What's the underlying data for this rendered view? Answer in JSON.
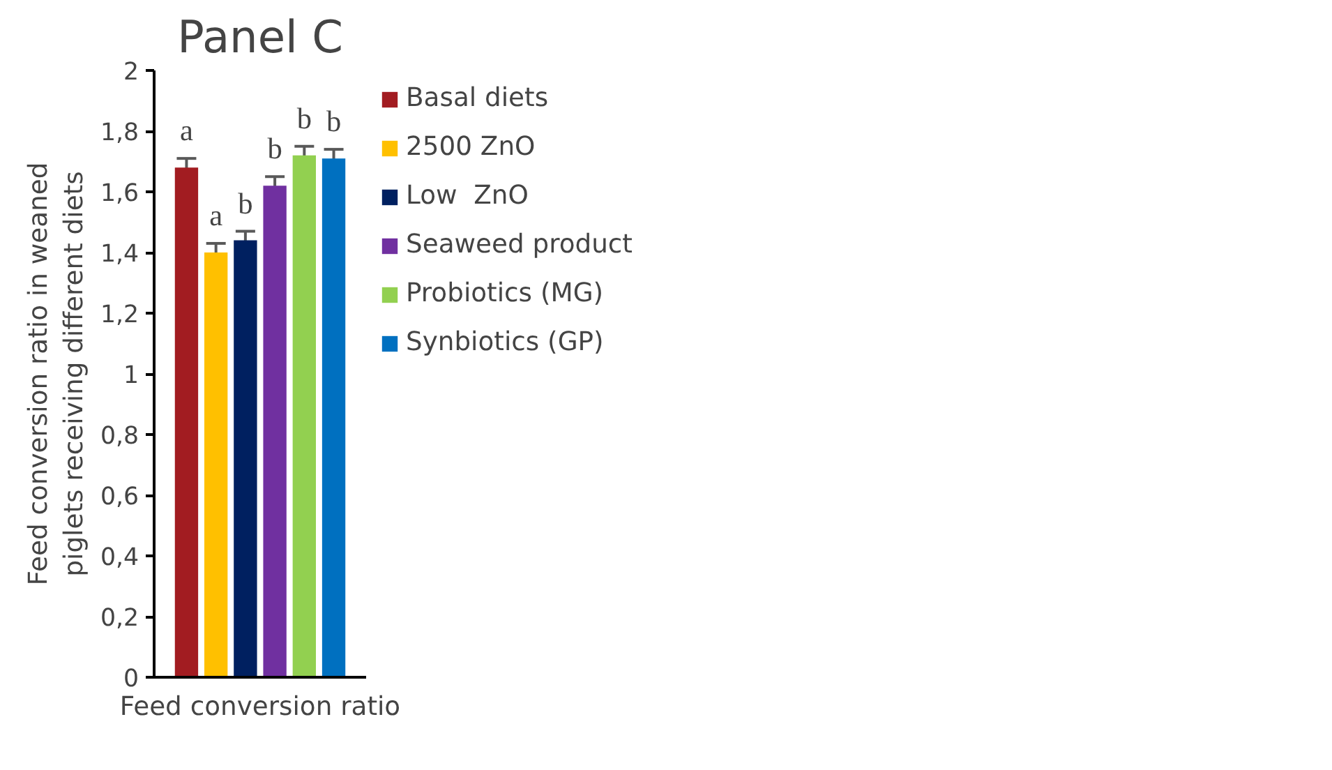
{
  "chart_data": {
    "type": "bar",
    "title": "Panel C",
    "xlabel": "Feed conversion ratio",
    "ylabel": "Feed conversion ratio in weaned piglets receiving different diets",
    "categories": [
      null
    ],
    "series": [
      {
        "name": "Basal diets",
        "color": "#a21c21",
        "values": [
          1.68
        ],
        "errors": [
          0.03
        ],
        "value_labels": [
          "a"
        ]
      },
      {
        "name": "2500 ZnO",
        "color": "#ffc000",
        "values": [
          1.4
        ],
        "errors": [
          0.03
        ],
        "value_labels": [
          "a"
        ]
      },
      {
        "name": "Low  ZnO",
        "color": "#002060",
        "values": [
          1.44
        ],
        "errors": [
          0.03
        ],
        "value_labels": [
          "b"
        ]
      },
      {
        "name": "Seaweed product",
        "color": "#7030a0",
        "values": [
          1.62
        ],
        "errors": [
          0.03
        ],
        "value_labels": [
          "b"
        ]
      },
      {
        "name": "Probiotics (MG)",
        "color": "#92d050",
        "values": [
          1.72
        ],
        "errors": [
          0.03
        ],
        "value_labels": [
          "b"
        ]
      },
      {
        "name": "Synbiotics (GP)",
        "color": "#0070c0",
        "values": [
          1.71
        ],
        "errors": [
          0.03
        ],
        "value_labels": [
          "b"
        ]
      }
    ],
    "ylim": [
      0,
      2
    ],
    "yticks": [
      0,
      {
        "value": 0.2,
        "label": "0,2"
      },
      {
        "value": 0.4,
        "label": "0,4"
      },
      {
        "value": 0.6,
        "label": "0,6"
      },
      {
        "value": 0.8,
        "label": "0,8"
      },
      1,
      {
        "value": 1.2,
        "label": "1,2"
      },
      {
        "value": 1.4,
        "label": "1,4"
      },
      {
        "value": 1.6,
        "label": "1,6"
      },
      {
        "value": 1.8,
        "label": "1,8"
      },
      2
    ],
    "grid": false,
    "legend": "right"
  }
}
